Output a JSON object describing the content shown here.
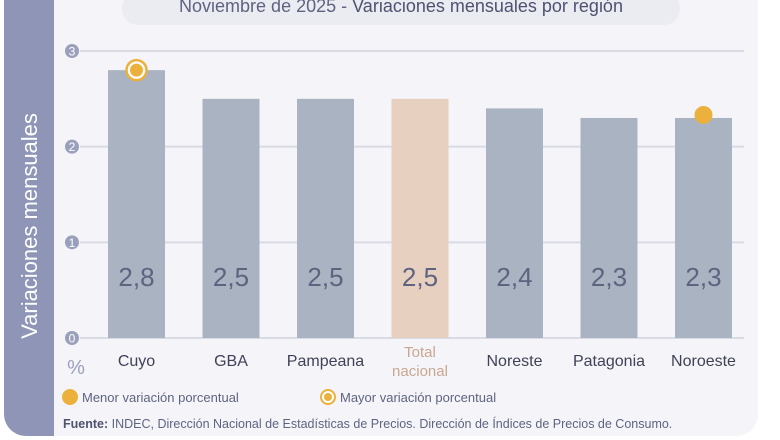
{
  "chart_data": {
    "type": "bar",
    "title_date": "Noviembre de 2025",
    "title_sep": " - ",
    "title": "Variaciones mensuales por región",
    "ylabel": "Variaciones mensuales",
    "yunit": "%",
    "ylim": [
      0,
      3
    ],
    "yticks": [
      "0",
      "1",
      "2",
      "3"
    ],
    "categories": [
      "Cuyo",
      "GBA",
      "Pampeana",
      "Total nacional",
      "Noreste",
      "Patagonia",
      "Noroeste"
    ],
    "values": [
      2.8,
      2.5,
      2.5,
      2.5,
      2.4,
      2.3,
      2.3
    ],
    "labels": [
      "2,8",
      "2,5",
      "2,5",
      "2,5",
      "2,4",
      "2,3",
      "2,3"
    ],
    "highlight": "Total nacional",
    "markers": {
      "max": "Cuyo",
      "min": "Noroeste"
    },
    "grid": true,
    "colors": {
      "bar": "#a9b3c1",
      "total": "#e8d0c1",
      "marker": "#ebb13c",
      "text": "#5e6380",
      "band": "#8e95b6"
    },
    "legend": {
      "min": "Menor variación porcentual",
      "max": "Mayor variación porcentual",
      "placement": "bottom"
    }
  },
  "source": {
    "label": "Fuente:",
    "text": " INDEC, Dirección Nacional de Estadísticas de Precios. Dirección de Índices de Precios de Consumo."
  }
}
